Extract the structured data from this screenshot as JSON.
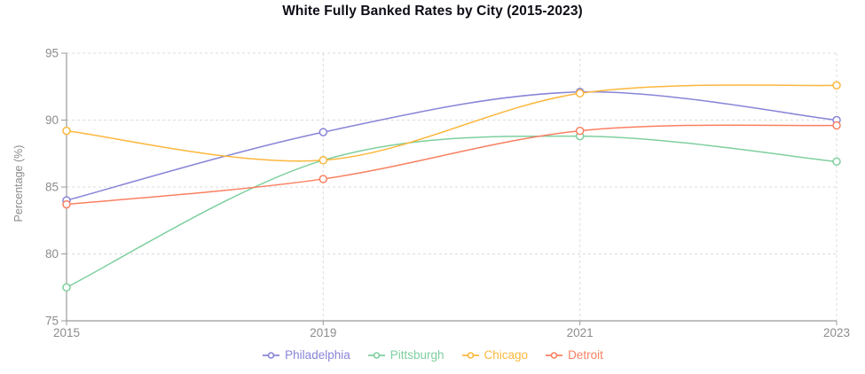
{
  "page": {
    "title": "White Fully Banked Rates by City (2015-2023)"
  },
  "chart_data": {
    "type": "line",
    "title": "White Fully Banked Rates by City (2015-2023)",
    "categories": [
      "2015",
      "2019",
      "2021",
      "2023"
    ],
    "series": [
      {
        "name": "Philadelphia",
        "color": "#8884d8",
        "values": [
          84.0,
          89.1,
          92.1,
          90.0
        ]
      },
      {
        "name": "Pittsburgh",
        "color": "#7ecf9e",
        "values": [
          77.5,
          87.0,
          88.8,
          86.9
        ]
      },
      {
        "name": "Chicago",
        "color": "#fcb73d",
        "values": [
          89.2,
          87.0,
          92.0,
          92.6
        ]
      },
      {
        "name": "Detroit",
        "color": "#fa8061",
        "values": [
          83.7,
          85.6,
          89.2,
          89.6
        ]
      }
    ],
    "xlabel": "",
    "ylabel": "Percentage (%)",
    "ylim": [
      75,
      95
    ],
    "yticks": [
      75,
      80,
      85,
      90,
      95
    ],
    "grid": "dashed",
    "legend_position": "bottom",
    "line_style": "smooth",
    "marker": "hollow-circle",
    "style": {
      "grid_color": "#dcdcdc",
      "axis_color": "#9b9b9b",
      "tick_label_color": "#8c8c8c",
      "title_color": "#0d0d16",
      "background": "#ffffff"
    }
  }
}
